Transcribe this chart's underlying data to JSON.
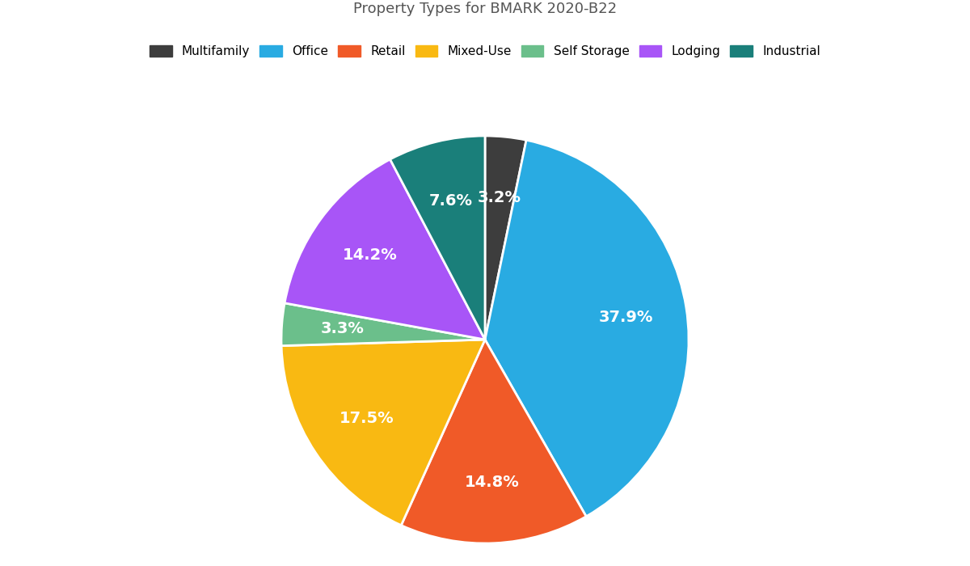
{
  "title": "Property Types for BMARK 2020-B22",
  "categories": [
    "Multifamily",
    "Office",
    "Retail",
    "Mixed-Use",
    "Self Storage",
    "Lodging",
    "Industrial"
  ],
  "values": [
    3.2,
    37.9,
    14.8,
    17.5,
    3.3,
    14.2,
    7.6
  ],
  "labels": [
    "3.2%",
    "37.9%",
    "14.8%",
    "17.5%",
    "3.3%",
    "14.2%",
    "7.6%"
  ],
  "colors": [
    "#3d3d3d",
    "#29abe2",
    "#f05a28",
    "#f9b912",
    "#6bbf8b",
    "#a855f7",
    "#1a7f7a"
  ],
  "startangle": 90,
  "label_fontsize": 14,
  "title_fontsize": 13,
  "legend_fontsize": 11,
  "background_color": "#ffffff",
  "text_color": "#ffffff"
}
